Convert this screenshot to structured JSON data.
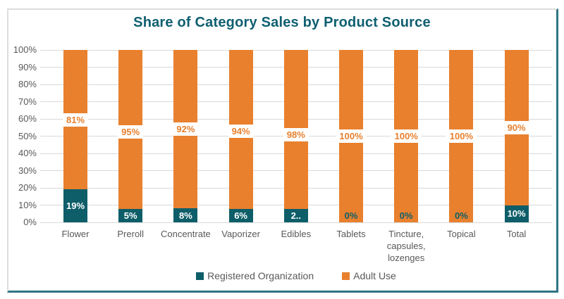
{
  "title": "Share of Category Sales by Product Source",
  "colors": {
    "registered_organization": "#0E5E69",
    "adult_use": "#E8802E",
    "title_text": "#0E5F70",
    "axis_text": "#595959",
    "gridline": "#D9D9D9",
    "frame_light": "#DDDDDD",
    "frame_teal": "#2E7583"
  },
  "chart_data": {
    "type": "bar",
    "stacked": true,
    "percent_stacked": true,
    "title": "Share of Category Sales by Product Source",
    "categories": [
      "Flower",
      "Preroll",
      "Concentrate",
      "Vaporizer",
      "Edibles",
      "Tablets",
      "Tincture, capsules, lozenges",
      "Topical",
      "Total"
    ],
    "category_label_lines": [
      [
        "Flower"
      ],
      [
        "Preroll"
      ],
      [
        "Concentrate"
      ],
      [
        "Vaporizer"
      ],
      [
        "Edibles"
      ],
      [
        "Tablets"
      ],
      [
        "Tincture,",
        "capsules,",
        "lozenges"
      ],
      [
        "Topical"
      ],
      [
        "Total"
      ]
    ],
    "series": [
      {
        "name": "Registered Organization",
        "color": "#0E5E69",
        "values": [
          19,
          5,
          8,
          6,
          2,
          0,
          0,
          0,
          10
        ],
        "labels": [
          "19%",
          "5%",
          "8%",
          "6%",
          "2..",
          "0%",
          "0%",
          "0%",
          "10%"
        ]
      },
      {
        "name": "Adult Use",
        "color": "#E8802E",
        "values": [
          81,
          95,
          92,
          94,
          98,
          100,
          100,
          100,
          90
        ],
        "labels": [
          "81%",
          "95%",
          "92%",
          "94%",
          "98%",
          "100%",
          "100%",
          "100%",
          "90%"
        ]
      }
    ],
    "xlabel": "",
    "ylabel": "",
    "ylim": [
      0,
      100
    ],
    "y_ticks": [
      "0%",
      "10%",
      "20%",
      "30%",
      "40%",
      "50%",
      "60%",
      "70%",
      "80%",
      "90%",
      "100%"
    ],
    "grid": true,
    "legend_position": "bottom"
  }
}
